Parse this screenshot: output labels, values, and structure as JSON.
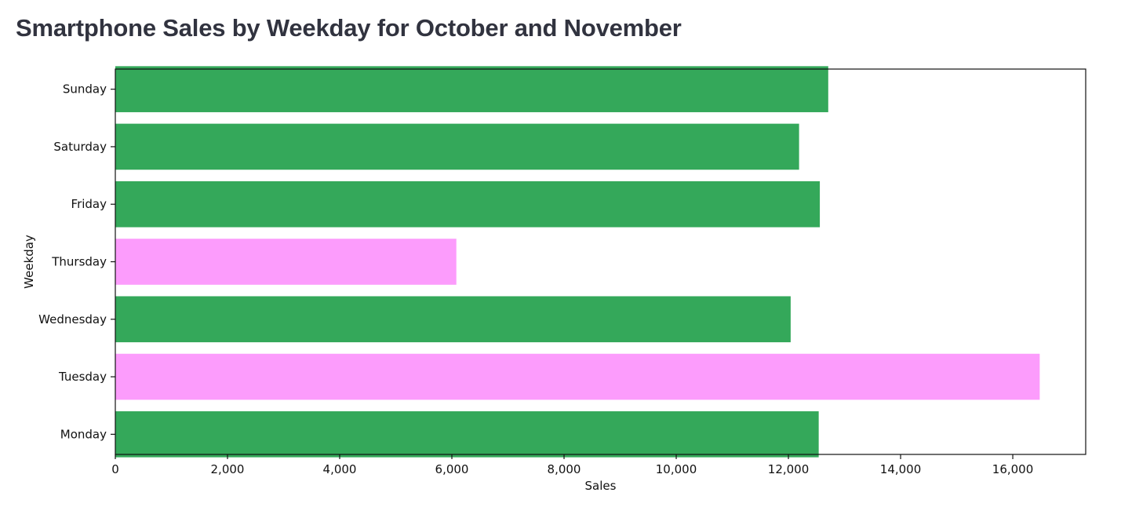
{
  "page": {
    "title": "Smartphone Sales by Weekday for October and November"
  },
  "colors": {
    "normal": "#34a85a",
    "highlight": "#fc9cfc",
    "axis": "#111111",
    "title": "#31333f"
  },
  "chart_data": {
    "type": "bar",
    "orientation": "horizontal",
    "title": "Smartphone Sales by Weekday for October and November",
    "xlabel": "Sales",
    "ylabel": "Weekday",
    "xlim": [
      0,
      17300
    ],
    "xticks": [
      0,
      2000,
      4000,
      6000,
      8000,
      10000,
      12000,
      14000,
      16000
    ],
    "xtick_labels": [
      "0",
      "2,000",
      "4,000",
      "6,000",
      "8,000",
      "10,000",
      "12,000",
      "14,000",
      "16,000"
    ],
    "grid": false,
    "legend": "none",
    "categories": [
      "Monday",
      "Tuesday",
      "Wednesday",
      "Thursday",
      "Friday",
      "Saturday",
      "Sunday"
    ],
    "values": [
      12540,
      16480,
      12040,
      6080,
      12560,
      12190,
      12710
    ],
    "highlighted": [
      false,
      true,
      false,
      true,
      false,
      false,
      false
    ]
  }
}
